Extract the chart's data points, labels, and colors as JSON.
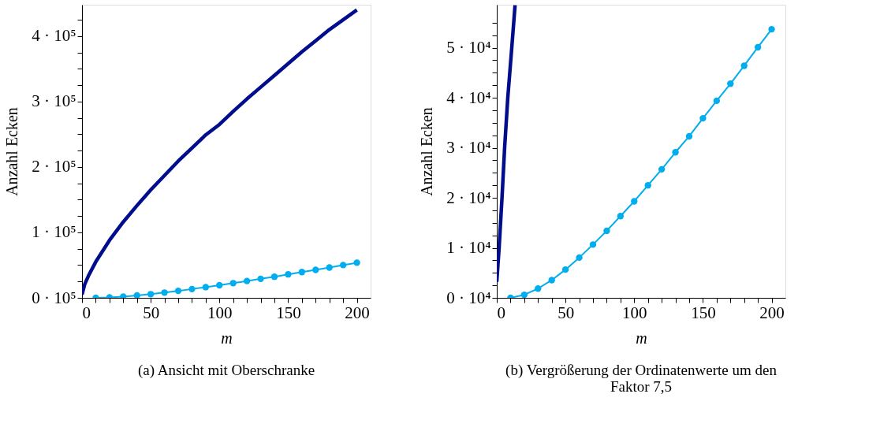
{
  "chart_data": [
    {
      "type": "line",
      "title": "(a) Ansicht mit Oberschranke",
      "xlabel": "m",
      "ylabel": "Anzahl Ecken",
      "xlim": [
        0,
        210
      ],
      "ylim": [
        0,
        448000
      ],
      "xticks": [
        0,
        {
          "value": 10,
          "label": null
        },
        {
          "value": 20,
          "label": null
        },
        {
          "value": 30,
          "label": null
        },
        {
          "value": 40,
          "label": null
        },
        50,
        {
          "value": 60,
          "label": null
        },
        {
          "value": 70,
          "label": null
        },
        {
          "value": 80,
          "label": null
        },
        {
          "value": 90,
          "label": null
        },
        100,
        {
          "value": 110,
          "label": null
        },
        {
          "value": 120,
          "label": null
        },
        {
          "value": 130,
          "label": null
        },
        {
          "value": 140,
          "label": null
        },
        150,
        {
          "value": 160,
          "label": null
        },
        {
          "value": 170,
          "label": null
        },
        {
          "value": 180,
          "label": null
        },
        {
          "value": 190,
          "label": null
        },
        200
      ],
      "yticks": [
        {
          "value": 0,
          "label": "0 · 10⁵"
        },
        {
          "value": 25000,
          "label": null
        },
        {
          "value": 50000,
          "label": null
        },
        {
          "value": 75000,
          "label": null
        },
        {
          "value": 100000,
          "label": "1 · 10⁵"
        },
        {
          "value": 125000,
          "label": null
        },
        {
          "value": 150000,
          "label": null
        },
        {
          "value": 175000,
          "label": null
        },
        {
          "value": 200000,
          "label": "2 · 10⁵"
        },
        {
          "value": 225000,
          "label": null
        },
        {
          "value": 250000,
          "label": null
        },
        {
          "value": 275000,
          "label": null
        },
        {
          "value": 300000,
          "label": "3 · 10⁵"
        },
        {
          "value": 325000,
          "label": null
        },
        {
          "value": 350000,
          "label": null
        },
        {
          "value": 375000,
          "label": null
        },
        {
          "value": 400000,
          "label": "4 · 10⁵"
        },
        {
          "value": 425000,
          "label": null
        }
      ],
      "series": [
        {
          "color": "#000d8c",
          "marker": "none",
          "x": [
            0,
            2,
            5,
            10,
            20,
            30,
            40,
            50,
            60,
            70,
            80,
            90,
            100,
            110,
            120,
            130,
            140,
            150,
            160,
            170,
            180,
            190,
            200
          ],
          "values": [
            5000,
            21000,
            35000,
            55000,
            88000,
            116000,
            141000,
            165000,
            187000,
            209000,
            229000,
            249000,
            265000,
            285000,
            304000,
            322000,
            340000,
            358000,
            376000,
            393000,
            410000,
            425000,
            440000
          ]
        },
        {
          "color": "#00aeef",
          "marker": "circle",
          "x": [
            10,
            20,
            30,
            40,
            50,
            60,
            70,
            80,
            90,
            100,
            110,
            120,
            130,
            140,
            150,
            160,
            170,
            180,
            190,
            200
          ],
          "values": [
            0,
            600,
            1850,
            3550,
            5650,
            8050,
            10650,
            13400,
            16350,
            19300,
            22500,
            25700,
            29100,
            32300,
            35900,
            39400,
            42800,
            46400,
            50100,
            53700
          ]
        }
      ]
    },
    {
      "type": "line",
      "title": "(b) Vergrößerung der Ordinatenwerte um den Faktor 7,5",
      "xlabel": "m",
      "ylabel": "Anzahl Ecken",
      "xlim": [
        0,
        210
      ],
      "ylim": [
        0,
        58600
      ],
      "xticks": [
        0,
        {
          "value": 10,
          "label": null
        },
        {
          "value": 20,
          "label": null
        },
        {
          "value": 30,
          "label": null
        },
        {
          "value": 40,
          "label": null
        },
        50,
        {
          "value": 60,
          "label": null
        },
        {
          "value": 70,
          "label": null
        },
        {
          "value": 80,
          "label": null
        },
        {
          "value": 90,
          "label": null
        },
        100,
        {
          "value": 110,
          "label": null
        },
        {
          "value": 120,
          "label": null
        },
        {
          "value": 130,
          "label": null
        },
        {
          "value": 140,
          "label": null
        },
        150,
        {
          "value": 160,
          "label": null
        },
        {
          "value": 170,
          "label": null
        },
        {
          "value": 180,
          "label": null
        },
        {
          "value": 190,
          "label": null
        },
        200
      ],
      "yticks": [
        {
          "value": 0,
          "label": "0 · 10⁴"
        },
        {
          "value": 2500,
          "label": null
        },
        {
          "value": 5000,
          "label": null
        },
        {
          "value": 7500,
          "label": null
        },
        {
          "value": 10000,
          "label": "1 · 10⁴"
        },
        {
          "value": 12500,
          "label": null
        },
        {
          "value": 15000,
          "label": null
        },
        {
          "value": 17500,
          "label": null
        },
        {
          "value": 20000,
          "label": "2 · 10⁴"
        },
        {
          "value": 22500,
          "label": null
        },
        {
          "value": 25000,
          "label": null
        },
        {
          "value": 27500,
          "label": null
        },
        {
          "value": 30000,
          "label": "3 · 10⁴"
        },
        {
          "value": 32500,
          "label": null
        },
        {
          "value": 35000,
          "label": null
        },
        {
          "value": 37500,
          "label": null
        },
        {
          "value": 40000,
          "label": "4 · 10⁴"
        },
        {
          "value": 42500,
          "label": null
        },
        {
          "value": 45000,
          "label": null
        },
        {
          "value": 47500,
          "label": null
        },
        {
          "value": 50000,
          "label": "5 · 10⁴"
        },
        {
          "value": 52500,
          "label": null
        },
        {
          "value": 55000,
          "label": null
        }
      ],
      "series": [
        {
          "color": "#000d8c",
          "marker": "none",
          "x": [
            0,
            1.7,
            3.8,
            5.7,
            8,
            10.9,
            13.3
          ],
          "values": [
            3200,
            10000,
            20000,
            30000,
            40000,
            50000,
            58500
          ]
        },
        {
          "color": "#00aeef",
          "marker": "circle",
          "x": [
            10,
            20,
            30,
            40,
            50,
            60,
            70,
            80,
            90,
            100,
            110,
            120,
            130,
            140,
            150,
            160,
            170,
            180,
            190,
            200
          ],
          "values": [
            0,
            600,
            1850,
            3550,
            5650,
            8050,
            10650,
            13400,
            16350,
            19300,
            22500,
            25700,
            29100,
            32300,
            35900,
            39400,
            42800,
            46400,
            50100,
            53700
          ]
        }
      ]
    }
  ]
}
